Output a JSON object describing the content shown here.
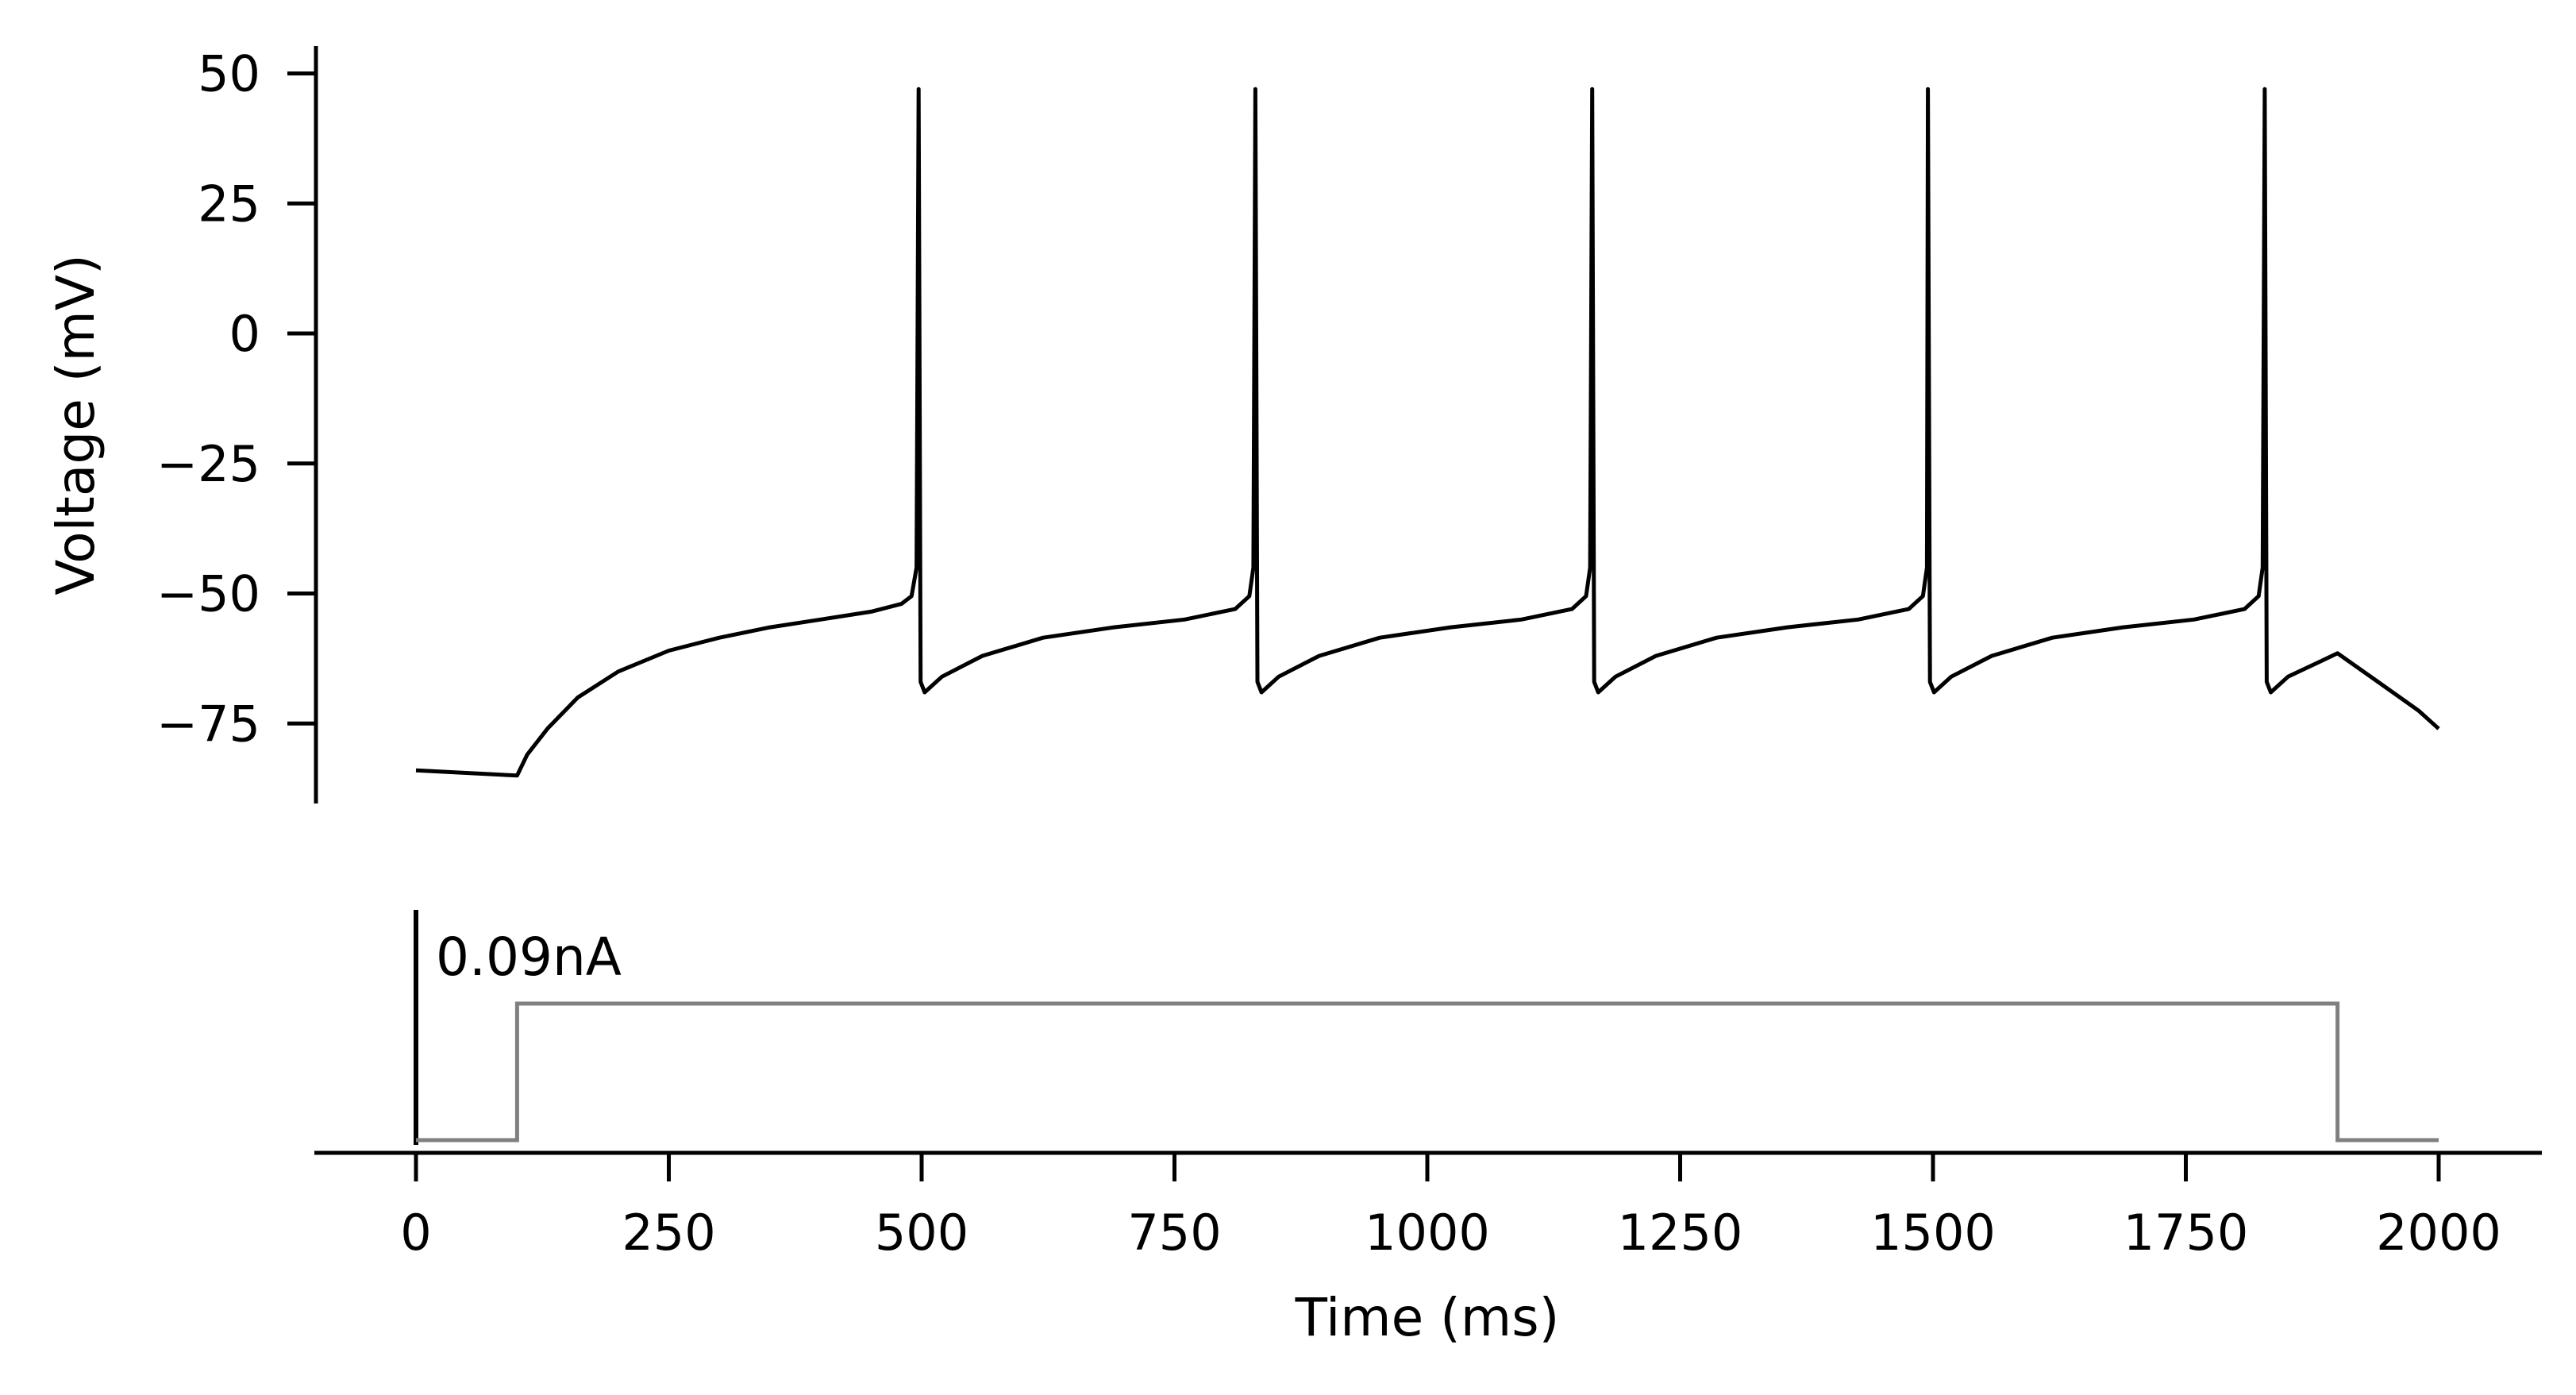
{
  "chart_data": [
    {
      "type": "line",
      "panel": "voltage",
      "ylabel": "Voltage (mV)",
      "xlabel": "",
      "ylim": [
        -90,
        55
      ],
      "xlim": [
        -100,
        2100
      ],
      "yticks": [
        50,
        25,
        0,
        -25,
        -50,
        -75
      ],
      "ytick_labels": [
        "50",
        "25",
        "0",
        "−25",
        "−50",
        "−75"
      ],
      "line_color": "#000000",
      "spike_times_ms": [
        497,
        830,
        1163,
        1495,
        1828
      ],
      "spike_peak_mv": 47,
      "trough_mv": -69,
      "series": [
        {
          "x": [
            0,
            100,
            110,
            130,
            160,
            200,
            250,
            300,
            350,
            400,
            450,
            480,
            490,
            495,
            497,
            499,
            503,
            520,
            560,
            620,
            690,
            760,
            810,
            824,
            828,
            830,
            832,
            836,
            853,
            893,
            953,
            1023,
            1093,
            1143,
            1157,
            1161,
            1163,
            1165,
            1169,
            1186,
            1226,
            1286,
            1356,
            1426,
            1476,
            1490,
            1494,
            1495,
            1497,
            1501,
            1518,
            1558,
            1618,
            1688,
            1758,
            1808,
            1822,
            1826,
            1828,
            1830,
            1834,
            1851,
            1900,
            1940,
            1980,
            2000
          ],
          "y": [
            -84,
            -85,
            -81,
            -76,
            -70,
            -65,
            -61,
            -58.5,
            -56.5,
            -55,
            -53.5,
            -52,
            -50.5,
            -45,
            47,
            -67,
            -69,
            -66,
            -62,
            -58.5,
            -56.5,
            -55,
            -53,
            -50.5,
            -45,
            47,
            -67,
            -69,
            -66,
            -62,
            -58.5,
            -56.5,
            -55,
            -53,
            -50.5,
            -45,
            47,
            -67,
            -69,
            -66,
            -62,
            -58.5,
            -56.5,
            -55,
            -53,
            -50.5,
            -45,
            47,
            -67,
            -69,
            -66,
            -62,
            -58.5,
            -56.5,
            -55,
            -53,
            -50.5,
            -45,
            47,
            -67,
            -69,
            -66,
            -61.5,
            -67,
            -72.5,
            -76
          ]
        }
      ]
    },
    {
      "type": "line",
      "panel": "current",
      "xlabel": "Time (ms)",
      "xlim": [
        -100,
        2100
      ],
      "xticks": [
        0,
        250,
        500,
        750,
        1000,
        1250,
        1500,
        1750,
        2000
      ],
      "xtick_labels": [
        "0",
        "250",
        "500",
        "750",
        "1000",
        "1250",
        "1500",
        "1750",
        "2000"
      ],
      "scale_bar_label": "0.09nA",
      "scale_bar_value_na": 0.09,
      "line_color": "#808080",
      "series": [
        {
          "x": [
            0,
            100,
            100,
            1900,
            1900,
            2000
          ],
          "y": [
            0,
            0,
            0.09,
            0.09,
            0,
            0
          ]
        }
      ]
    }
  ]
}
